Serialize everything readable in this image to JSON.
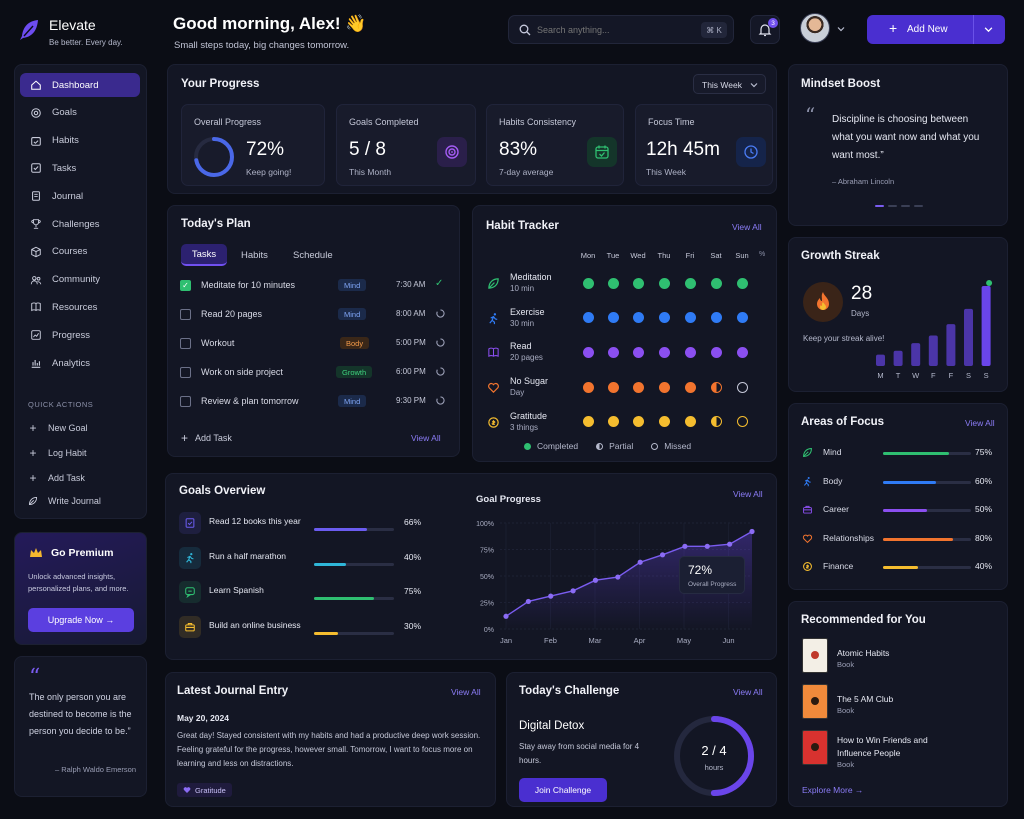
{
  "brand": {
    "name": "Elevate",
    "tagline": "Be better. Every day."
  },
  "header": {
    "greeting": "Good morning, Alex! 👋",
    "subtitle": "Small steps today, big changes tomorrow.",
    "search_placeholder": "Search anything...",
    "search_shortcut": "⌘ K",
    "notification_count": "3",
    "add_new_label": "Add New"
  },
  "sidebar": {
    "items": [
      {
        "label": "Dashboard",
        "icon": "home-icon"
      },
      {
        "label": "Goals",
        "icon": "target-icon"
      },
      {
        "label": "Habits",
        "icon": "calendar-check-icon"
      },
      {
        "label": "Tasks",
        "icon": "checklist-icon"
      },
      {
        "label": "Journal",
        "icon": "journal-icon"
      },
      {
        "label": "Challenges",
        "icon": "trophy-icon"
      },
      {
        "label": "Courses",
        "icon": "cube-icon"
      },
      {
        "label": "Community",
        "icon": "community-icon"
      },
      {
        "label": "Resources",
        "icon": "book-icon"
      },
      {
        "label": "Progress",
        "icon": "progress-icon"
      },
      {
        "label": "Analytics",
        "icon": "analytics-icon"
      }
    ],
    "quick_actions_title": "QUICK ACTIONS",
    "quick_actions": [
      "New Goal",
      "Log Habit",
      "Add Task",
      "Write Journal"
    ]
  },
  "premium": {
    "title": "Go Premium",
    "desc": "Unlock advanced insights, personalized plans, and more.",
    "button": "Upgrade Now →"
  },
  "side_quote": {
    "text": "The only person you are destined to become is the person you decide to be.”",
    "author": "– Ralph Waldo Emerson"
  },
  "progress": {
    "title": "Your Progress",
    "range": "This Week",
    "stats": [
      {
        "label": "Overall Progress",
        "value": "72%",
        "sub": "Keep going!",
        "fraction": 0.72
      },
      {
        "label": "Goals Completed",
        "value": "5 / 8",
        "sub": "This Month"
      },
      {
        "label": "Habits Consistency",
        "value": "83%",
        "sub": "7-day average"
      },
      {
        "label": "Focus Time",
        "value": "12h 45m",
        "sub": "This Week"
      }
    ]
  },
  "mindset": {
    "title": "Mindset Boost",
    "quote": "Discipline is choosing between what you want now and what you want most.”",
    "author": "– Abraham Lincoln"
  },
  "plan": {
    "title": "Today's Plan",
    "tabs": [
      "Tasks",
      "Habits",
      "Schedule"
    ],
    "tasks": [
      {
        "text": "Meditate for 10 minutes",
        "tag": "Mind",
        "time": "7:30 AM",
        "done": true
      },
      {
        "text": "Read 20 pages",
        "tag": "Mind",
        "time": "8:00 AM",
        "done": false
      },
      {
        "text": "Workout",
        "tag": "Body",
        "time": "5:00 PM",
        "done": false
      },
      {
        "text": "Work on side project",
        "tag": "Growth",
        "time": "6:00 PM",
        "done": false
      },
      {
        "text": "Review & plan tomorrow",
        "tag": "Mind",
        "time": "9:30 PM",
        "done": false
      }
    ],
    "add_task": "Add Task",
    "view_all": "View All"
  },
  "habits": {
    "title": "Habit Tracker",
    "view_all": "View All",
    "days": [
      "Mon",
      "Tue",
      "Wed",
      "Thu",
      "Fri",
      "Sat",
      "Sun"
    ],
    "items": [
      {
        "name": "Meditation",
        "sub": "10 min",
        "color": "#2fbf71",
        "status": [
          "c",
          "c",
          "c",
          "c",
          "c",
          "c",
          "c"
        ]
      },
      {
        "name": "Exercise",
        "sub": "30 min",
        "color": "#2f7bf5",
        "status": [
          "c",
          "c",
          "c",
          "c",
          "c",
          "c",
          "c"
        ]
      },
      {
        "name": "Read",
        "sub": "20 pages",
        "color": "#8b4ff0",
        "status": [
          "c",
          "c",
          "c",
          "c",
          "c",
          "c",
          "c"
        ]
      },
      {
        "name": "No Sugar",
        "sub": "Day",
        "color": "#f2742e",
        "status": [
          "c",
          "c",
          "c",
          "c",
          "c",
          "p",
          "m"
        ]
      },
      {
        "name": "Gratitude",
        "sub": "3 things",
        "color": "#f5bd2f",
        "status": [
          "c",
          "c",
          "c",
          "c",
          "c",
          "p",
          "m"
        ]
      }
    ],
    "legend": [
      "Completed",
      "Partial",
      "Missed"
    ]
  },
  "streak": {
    "title": "Growth Streak",
    "value": "28",
    "unit": "Days",
    "note": "Keep your streak alive!",
    "days": [
      "M",
      "T",
      "W",
      "F",
      "F",
      "S",
      "S"
    ],
    "values": [
      3,
      4,
      6,
      8,
      11,
      15,
      21
    ]
  },
  "focus": {
    "title": "Areas of Focus",
    "view_all": "View All",
    "items": [
      {
        "name": "Mind",
        "pct": "75%",
        "frac": 0.75,
        "color": "#2fbf71",
        "icon": "leaf-icon"
      },
      {
        "name": "Body",
        "pct": "60%",
        "frac": 0.6,
        "color": "#2f7bf5",
        "icon": "run-icon"
      },
      {
        "name": "Career",
        "pct": "50%",
        "frac": 0.5,
        "color": "#8b4ff0",
        "icon": "briefcase-icon"
      },
      {
        "name": "Relationships",
        "pct": "80%",
        "frac": 0.8,
        "color": "#f2742e",
        "icon": "heart-icon"
      },
      {
        "name": "Finance",
        "pct": "40%",
        "frac": 0.4,
        "color": "#f5bd2f",
        "icon": "coin-icon"
      }
    ]
  },
  "goals": {
    "title": "Goals Overview",
    "items": [
      {
        "name": "Read 12 books this year",
        "pct": "66%",
        "frac": 0.66,
        "color": "#6b5cf0",
        "icon": "book-check-icon"
      },
      {
        "name": "Run a half marathon",
        "pct": "40%",
        "frac": 0.4,
        "color": "#2fb6d8",
        "icon": "run-icon"
      },
      {
        "name": "Learn Spanish",
        "pct": "75%",
        "frac": 0.75,
        "color": "#2fbf71",
        "icon": "speech-icon"
      },
      {
        "name": "Build an online business",
        "pct": "30%",
        "frac": 0.3,
        "color": "#f5bd2f",
        "icon": "briefcase-icon"
      }
    ]
  },
  "chart_data": {
    "type": "line",
    "title": "Goal Progress",
    "view_all": "View All",
    "x_labels": [
      "Jan",
      "Feb",
      "Mar",
      "Apr",
      "May",
      "Jun"
    ],
    "y_labels": [
      "100%",
      "75%",
      "50%",
      "25%",
      "0%"
    ],
    "ylim": [
      0,
      100
    ],
    "values": [
      12,
      26,
      31,
      36,
      46,
      49,
      63,
      70,
      78,
      78,
      80,
      92
    ],
    "annotation_value": "72%",
    "annotation_label": "Overall Progress",
    "grid": true
  },
  "recommended": {
    "title": "Recommended for You",
    "items": [
      {
        "title": "Atomic Habits",
        "type": "Book",
        "cover": "#f3efe6"
      },
      {
        "title": "The 5 AM Club",
        "type": "Book",
        "cover": "#f08a3b"
      },
      {
        "title": "How to Win Friends and Influence People",
        "type": "Book",
        "cover": "#d8322f"
      }
    ],
    "explore": "Explore More →"
  },
  "journal": {
    "title": "Latest Journal Entry",
    "view_all": "View All",
    "date": "May 20, 2024",
    "text": "Great day! Stayed consistent with my habits and had a productive deep work session. Feeling grateful for the progress, however small. Tomorrow, I want to focus more on learning and less on distractions.",
    "tag": "Gratitude"
  },
  "challenge": {
    "title": "Today's Challenge",
    "view_all": "View All",
    "name": "Digital Detox",
    "desc": "Stay away from social media for 4 hours.",
    "button": "Join Challenge",
    "progress": "2 / 4",
    "unit": "hours",
    "fraction": 0.5
  }
}
